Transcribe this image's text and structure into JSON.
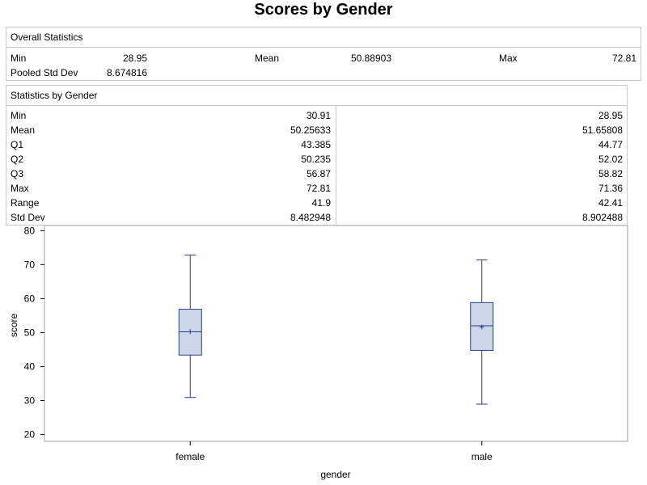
{
  "title": "Scores by Gender",
  "overall": {
    "header": "Overall Statistics",
    "min_label": "Min",
    "min": "28.95",
    "mean_label": "Mean",
    "mean": "50.88903",
    "max_label": "Max",
    "max": "72.81",
    "psd_label": "Pooled Std Dev",
    "psd": "8.674816"
  },
  "bygender": {
    "header": "Statistics by Gender",
    "rows": [
      {
        "label": "Min",
        "female": "30.91",
        "male": "28.95"
      },
      {
        "label": "Mean",
        "female": "50.25633",
        "male": "51.65808"
      },
      {
        "label": "Q1",
        "female": "43.385",
        "male": "44.77"
      },
      {
        "label": "Q2",
        "female": "50.235",
        "male": "52.02"
      },
      {
        "label": "Q3",
        "female": "56.87",
        "male": "58.82"
      },
      {
        "label": "Max",
        "female": "72.81",
        "male": "71.36"
      },
      {
        "label": "Range",
        "female": "41.9",
        "male": "42.41"
      },
      {
        "label": "Std Dev",
        "female": "8.482948",
        "male": "8.902488"
      }
    ]
  },
  "chart_data": {
    "type": "box",
    "xlabel": "gender",
    "ylabel": "score",
    "ylim": [
      18,
      81.5
    ],
    "yticks": [
      20,
      30,
      40,
      50,
      60,
      70,
      80
    ],
    "categories": [
      "female",
      "male"
    ],
    "boxes": [
      {
        "category": "female",
        "min": 30.91,
        "q1": 43.385,
        "median": 50.235,
        "q3": 56.87,
        "max": 72.81,
        "mean": 50.25633
      },
      {
        "category": "male",
        "min": 28.95,
        "q1": 44.77,
        "median": 52.02,
        "q3": 58.82,
        "max": 71.36,
        "mean": 51.65808
      }
    ],
    "colors": {
      "stroke": "#2a3f8f",
      "fill": "#cdd6e8",
      "frame": "#a0a0a0"
    }
  }
}
